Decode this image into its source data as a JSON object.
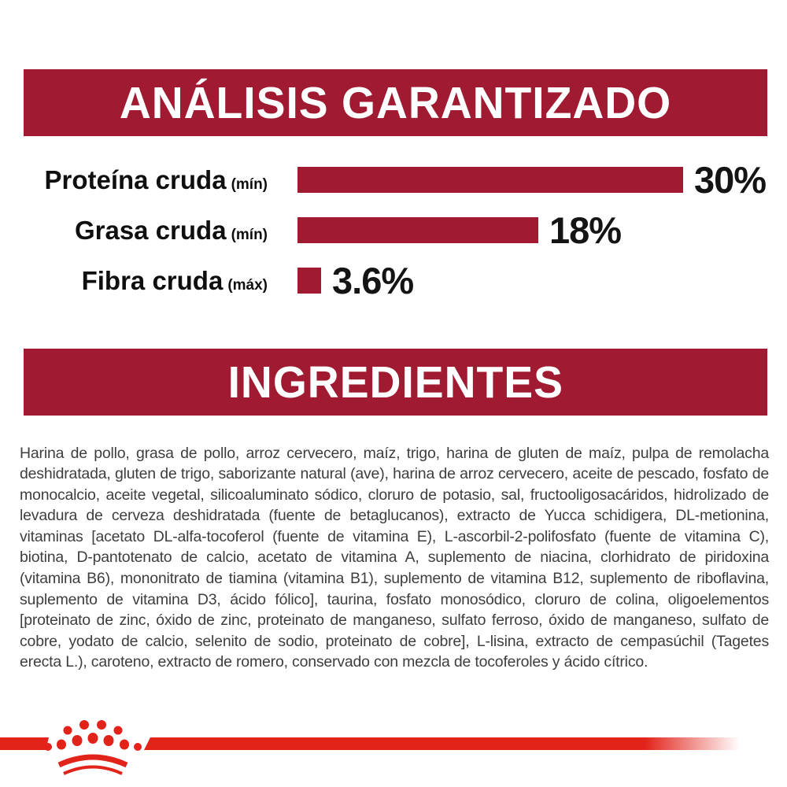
{
  "colors": {
    "banner_bg": "#A01B31",
    "banner_text": "#ffffff",
    "bar_fill": "#A01B31",
    "label_text": "#0f0f0f",
    "value_text": "#141414",
    "body_text": "#3e3e3e",
    "brand_red": "#E2231A",
    "page_bg": "#ffffff"
  },
  "sections": {
    "analysis": {
      "title": "ANÁLISIS GARANTIZADO"
    },
    "ingredients": {
      "title": "INGREDIENTES",
      "body": "Harina de pollo, grasa de pollo, arroz cervecero, maíz, trigo, harina de gluten de maíz, pulpa de remolacha deshidratada, gluten de trigo, saborizante natural (ave), harina de arroz cervecero, aceite de pescado, fosfato de monocalcio, aceite vegetal, silicoaluminato sódico, cloruro de potasio, sal, fructooligosacáridos, hidrolizado de levadura de cerveza deshidratada (fuente de betaglucanos), extracto de Yucca schidigera, DL-metionina, vitaminas [acetato DL-alfa-tocoferol (fuente de vitamina E), L-ascorbil-2-polifosfato (fuente de vitamina C), biotina, D-pantotenato de calcio, acetato de vitamina A, suplemento de niacina, clorhidrato de piridoxina (vitamina B6), mononitrato de tiamina (vitamina B1), suplemento de vitamina B12, suplemento de riboflavina, suplemento de vitamina D3, ácido fólico], taurina, fosfato monosódico, cloruro de colina, oligoelementos [proteinato de zinc, óxido de zinc, proteinato de manganeso, sulfato ferroso, óxido de manganeso, sulfato de cobre, yodato de calcio, selenito de sodio, proteinato de cobre], L-lisina, extracto de cempasúchil (Tagetes erecta L.), caroteno, extracto de romero, conservado con mezcla de tocoferoles y ácido cítrico."
    }
  },
  "chart_data": {
    "type": "bar",
    "orientation": "horizontal",
    "title": "ANÁLISIS GARANTIZADO",
    "categories": [
      "Proteína cruda (mín)",
      "Grasa cruda (mín)",
      "Fibra cruda (máx)"
    ],
    "values": [
      30,
      18,
      3.6
    ],
    "unit": "%",
    "xlim": [
      0,
      30
    ],
    "grid": false,
    "legend": false,
    "bar_color": "#A01B31",
    "rows": [
      {
        "label": "Proteína cruda",
        "qualifier": "(mín)",
        "value": 30,
        "display": "30%"
      },
      {
        "label": "Grasa cruda",
        "qualifier": "(mín)",
        "value": 18,
        "display": "18%"
      },
      {
        "label": "Fibra cruda",
        "qualifier": "(máx)",
        "value": 3.6,
        "display": "3.6%"
      }
    ]
  },
  "footer": {
    "logo_icon": "royal-canin-crown-icon"
  }
}
